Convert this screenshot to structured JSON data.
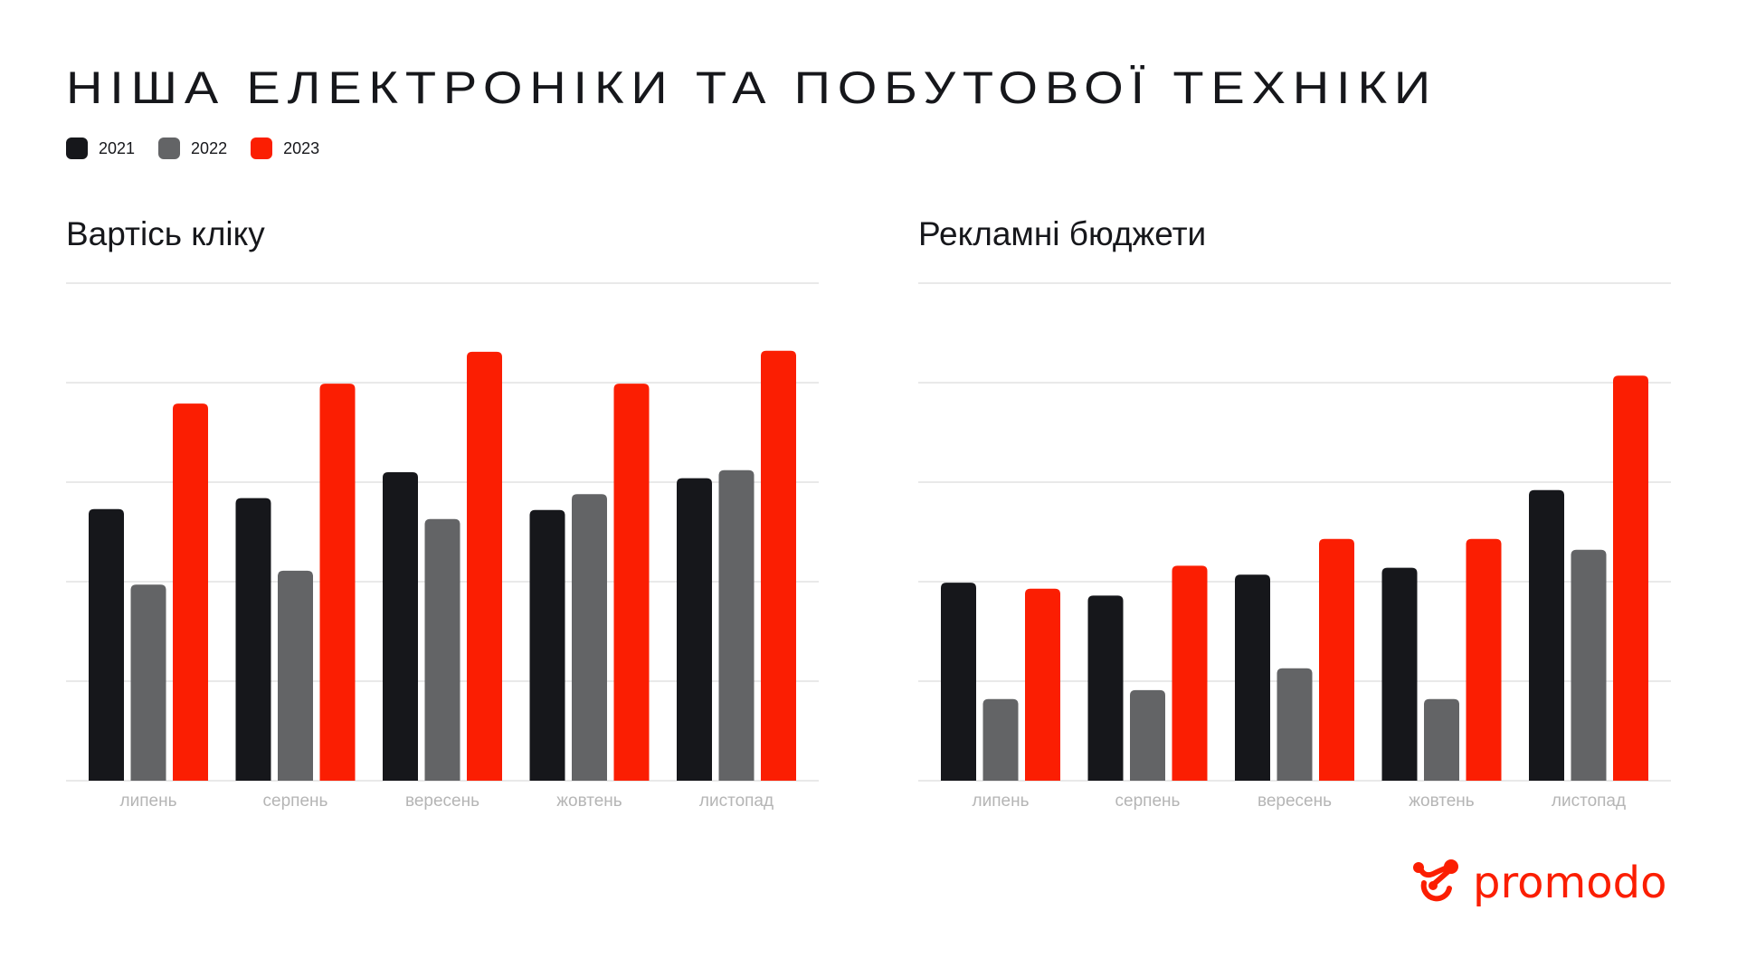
{
  "title": "НІША ЕЛЕКТРОНІКИ ТА ПОБУТОВОЇ ТЕХНІКИ",
  "legend": [
    {
      "label": "2021",
      "color": "#16171b"
    },
    {
      "label": "2022",
      "color": "#636466"
    },
    {
      "label": "2023",
      "color": "#fb1e02"
    }
  ],
  "logo": {
    "text": "promodo",
    "color": "#fb1e02"
  },
  "chart_data": [
    {
      "type": "bar",
      "title": "Вартісь кліку",
      "categories": [
        "липень",
        "серпень",
        "вересень",
        "жовтень",
        "листопад"
      ],
      "series": [
        {
          "name": "2021",
          "color": "#16171b",
          "values": [
            2.73,
            2.84,
            3.1,
            2.72,
            3.04
          ]
        },
        {
          "name": "2022",
          "color": "#636466",
          "values": [
            1.97,
            2.11,
            2.63,
            2.88,
            3.12
          ]
        },
        {
          "name": "2023",
          "color": "#fb1e02",
          "values": [
            3.79,
            3.99,
            4.31,
            3.99,
            4.32
          ]
        }
      ],
      "ylim": [
        0,
        5
      ],
      "grid": true,
      "legend_position": "top-left"
    },
    {
      "type": "bar",
      "title": "Рекламні бюджети",
      "categories": [
        "липень",
        "серпень",
        "вересень",
        "жовтень",
        "листопад"
      ],
      "series": [
        {
          "name": "2021",
          "color": "#16171b",
          "values": [
            1.99,
            1.86,
            2.07,
            2.14,
            2.92
          ]
        },
        {
          "name": "2022",
          "color": "#636466",
          "values": [
            0.82,
            0.91,
            1.13,
            0.82,
            2.32
          ]
        },
        {
          "name": "2023",
          "color": "#fb1e02",
          "values": [
            1.93,
            2.16,
            2.43,
            2.43,
            4.07
          ]
        }
      ],
      "ylim": [
        0,
        5
      ],
      "grid": true,
      "legend_position": "top-left"
    }
  ]
}
